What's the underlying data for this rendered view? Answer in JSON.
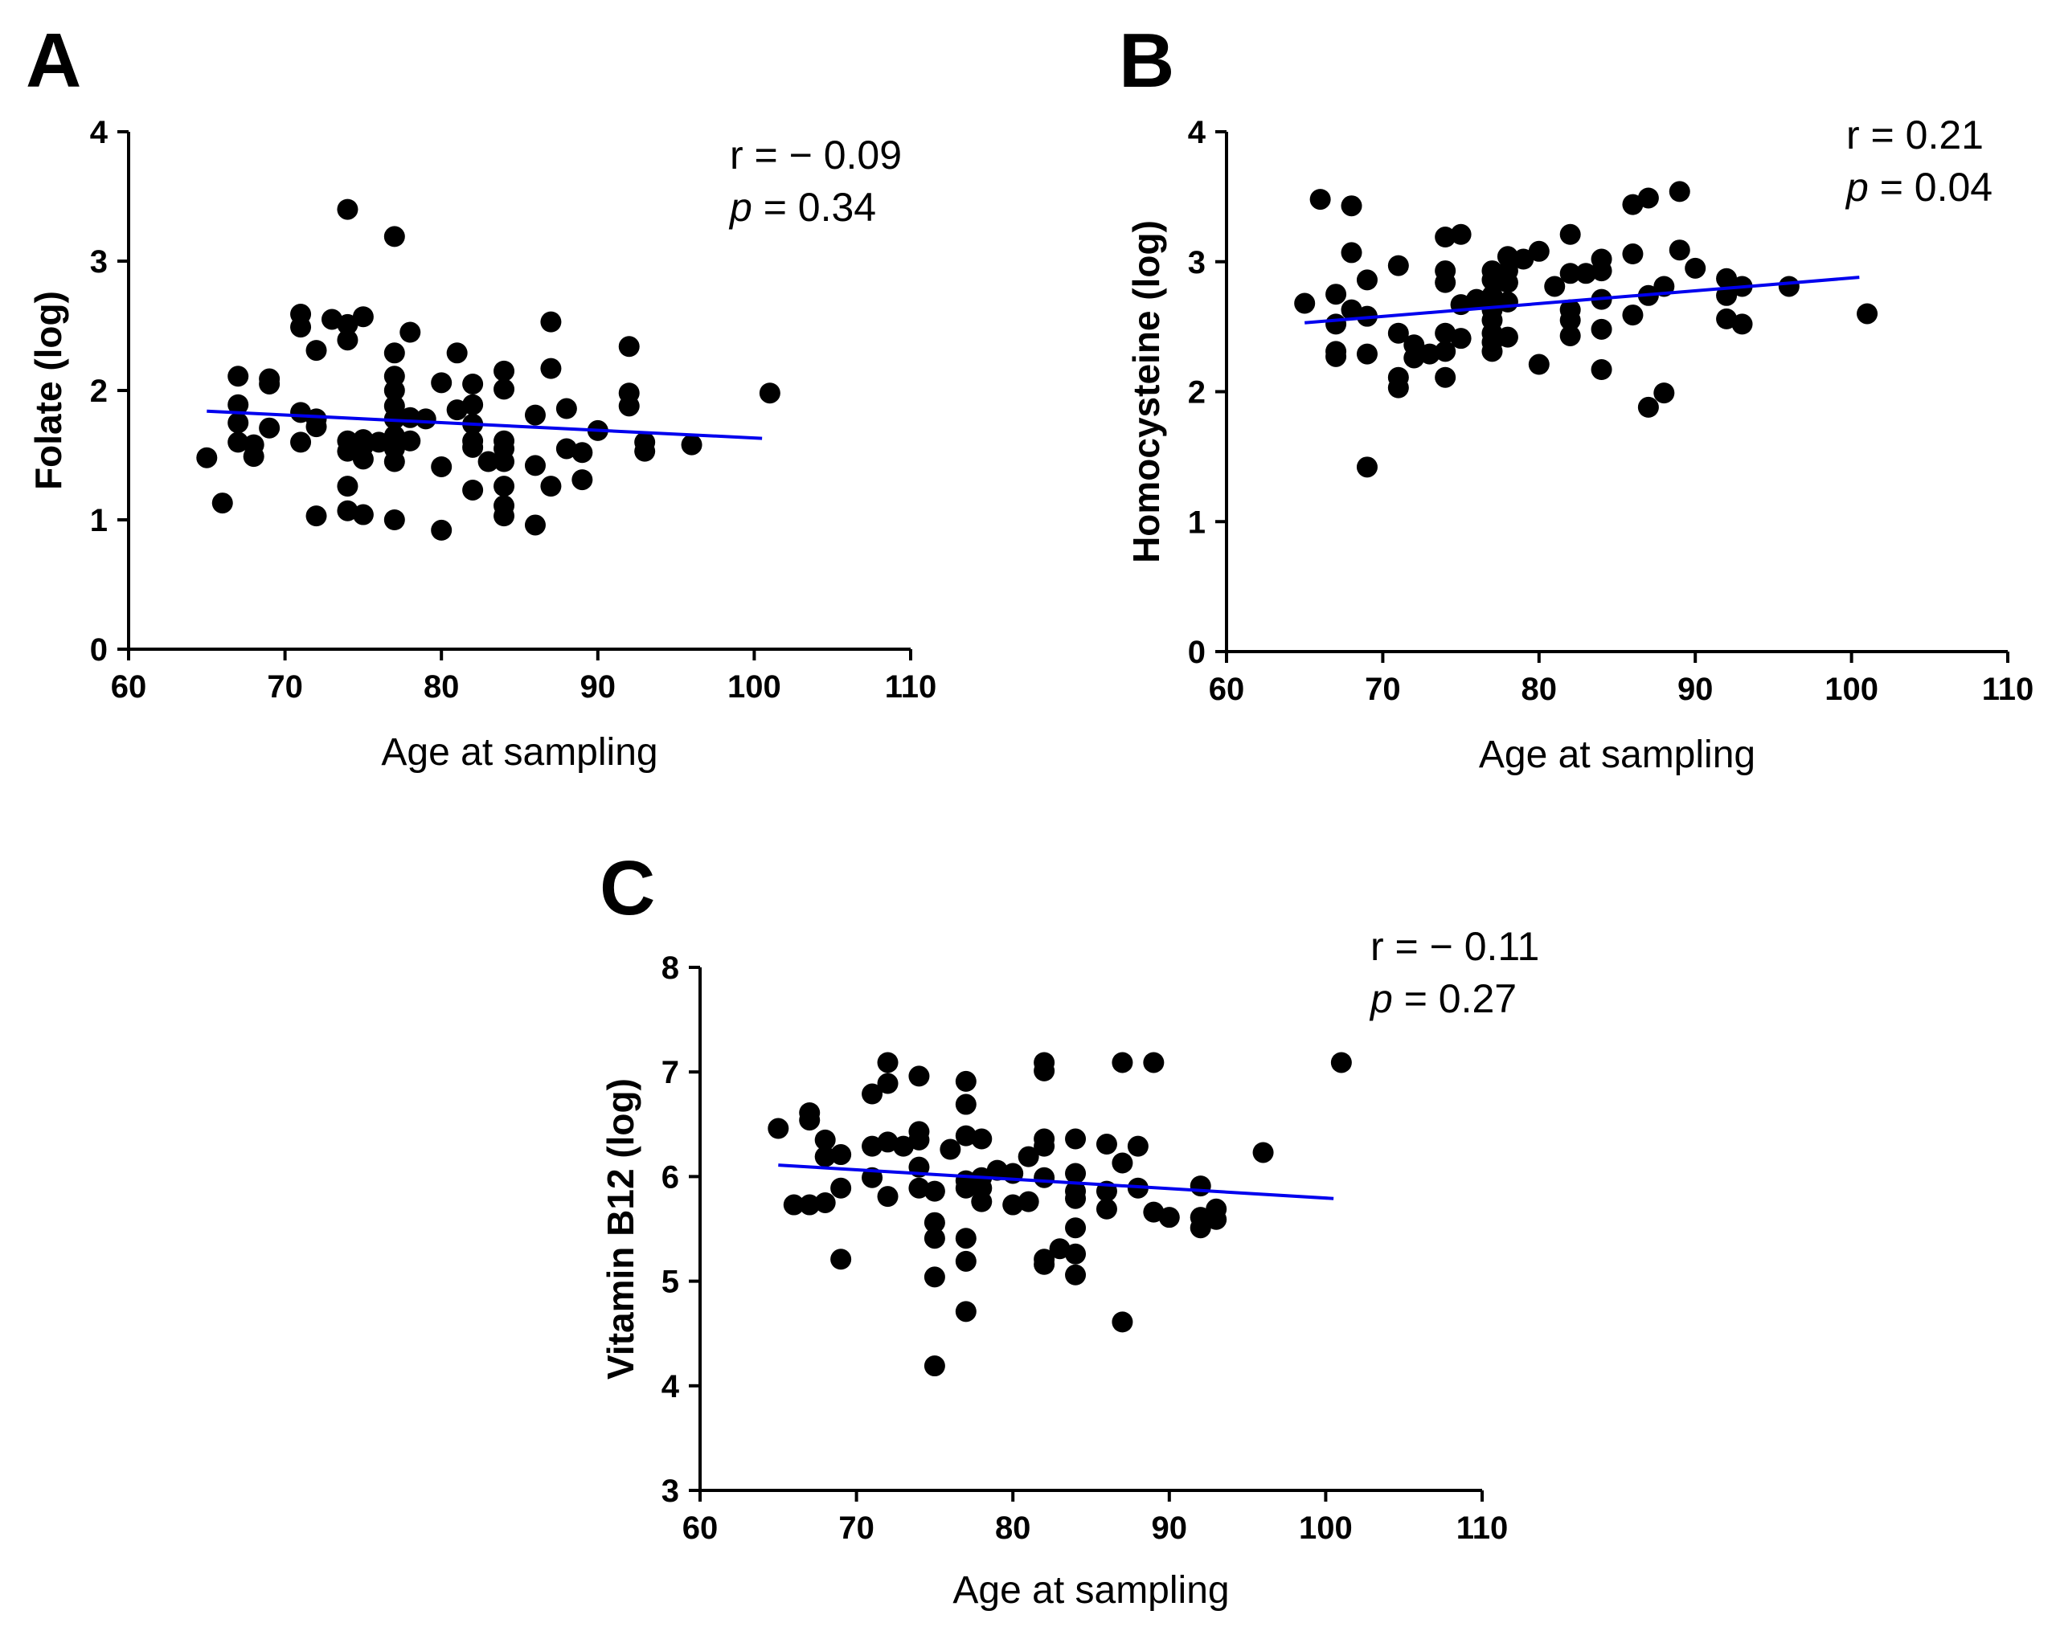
{
  "chart_data": [
    {
      "panel": "A",
      "type": "scatter",
      "xlabel": "Age at sampling",
      "ylabel": "Folate (log)",
      "xlim": [
        60,
        110
      ],
      "ylim": [
        0,
        4
      ],
      "xticks": [
        60,
        70,
        80,
        90,
        100,
        110
      ],
      "yticks": [
        0,
        1,
        2,
        3,
        4
      ],
      "r_text": "r = − 0.09",
      "p_symbol": "p",
      "p_text": " = 0.34",
      "fit_line": {
        "x": [
          65,
          100.5
        ],
        "y": [
          1.84,
          1.63
        ],
        "color": "#0000ee"
      },
      "points": [
        [
          65,
          1.48
        ],
        [
          66,
          1.13
        ],
        [
          67,
          2.11
        ],
        [
          67,
          1.89
        ],
        [
          67,
          1.75
        ],
        [
          67,
          1.6
        ],
        [
          68,
          1.58
        ],
        [
          68,
          1.49
        ],
        [
          69,
          2.09
        ],
        [
          69,
          2.05
        ],
        [
          69,
          1.71
        ],
        [
          71,
          2.59
        ],
        [
          71,
          2.49
        ],
        [
          71,
          1.83
        ],
        [
          71,
          1.6
        ],
        [
          72,
          2.31
        ],
        [
          72,
          1.78
        ],
        [
          72,
          1.72
        ],
        [
          72,
          1.03
        ],
        [
          73,
          2.55
        ],
        [
          74,
          3.4
        ],
        [
          74,
          2.51
        ],
        [
          74,
          2.39
        ],
        [
          74,
          1.61
        ],
        [
          74,
          1.53
        ],
        [
          74,
          1.26
        ],
        [
          74,
          1.07
        ],
        [
          75,
          2.57
        ],
        [
          75,
          1.62
        ],
        [
          75,
          1.57
        ],
        [
          75,
          1.47
        ],
        [
          75,
          1.04
        ],
        [
          76,
          1.6
        ],
        [
          77,
          3.19
        ],
        [
          77,
          2.29
        ],
        [
          77,
          2.11
        ],
        [
          77,
          2.0
        ],
        [
          77,
          1.88
        ],
        [
          77,
          1.78
        ],
        [
          77,
          1.65
        ],
        [
          77,
          1.55
        ],
        [
          77,
          1.45
        ],
        [
          77,
          1.0
        ],
        [
          78,
          2.45
        ],
        [
          78,
          1.79
        ],
        [
          78,
          1.61
        ],
        [
          79,
          1.78
        ],
        [
          80,
          2.06
        ],
        [
          80,
          1.41
        ],
        [
          80,
          0.92
        ],
        [
          81,
          2.29
        ],
        [
          81,
          1.85
        ],
        [
          82,
          2.05
        ],
        [
          82,
          1.89
        ],
        [
          82,
          1.74
        ],
        [
          82,
          1.61
        ],
        [
          82,
          1.56
        ],
        [
          82,
          1.23
        ],
        [
          83,
          1.45
        ],
        [
          84,
          2.15
        ],
        [
          84,
          2.01
        ],
        [
          84,
          1.61
        ],
        [
          84,
          1.55
        ],
        [
          84,
          1.45
        ],
        [
          84,
          1.26
        ],
        [
          84,
          1.11
        ],
        [
          84,
          1.03
        ],
        [
          86,
          1.81
        ],
        [
          86,
          1.42
        ],
        [
          86,
          0.96
        ],
        [
          87,
          2.53
        ],
        [
          87,
          2.17
        ],
        [
          87,
          1.26
        ],
        [
          88,
          1.86
        ],
        [
          88,
          1.55
        ],
        [
          89,
          1.52
        ],
        [
          89,
          1.31
        ],
        [
          90,
          1.69
        ],
        [
          92,
          2.34
        ],
        [
          92,
          1.98
        ],
        [
          92,
          1.88
        ],
        [
          93,
          1.6
        ],
        [
          93,
          1.53
        ],
        [
          96,
          1.58
        ],
        [
          101,
          1.98
        ]
      ]
    },
    {
      "panel": "B",
      "type": "scatter",
      "xlabel": "Age at sampling",
      "ylabel": "Homocysteine (log)",
      "xlim": [
        60,
        110
      ],
      "ylim": [
        0,
        4
      ],
      "xticks": [
        60,
        70,
        80,
        90,
        100,
        110
      ],
      "yticks": [
        0,
        1,
        2,
        3,
        4
      ],
      "r_text": "r = 0.21",
      "p_symbol": "p",
      "p_text": " = 0.04",
      "fit_line": {
        "x": [
          65,
          100.5
        ],
        "y": [
          2.53,
          2.88
        ],
        "color": "#0000ee"
      },
      "points": [
        [
          65,
          2.68
        ],
        [
          66,
          3.48
        ],
        [
          67,
          2.75
        ],
        [
          67,
          2.52
        ],
        [
          67,
          2.31
        ],
        [
          67,
          2.27
        ],
        [
          68,
          3.43
        ],
        [
          68,
          3.07
        ],
        [
          68,
          2.63
        ],
        [
          69,
          2.86
        ],
        [
          69,
          2.58
        ],
        [
          69,
          2.29
        ],
        [
          69,
          1.42
        ],
        [
          71,
          2.97
        ],
        [
          71,
          2.45
        ],
        [
          71,
          2.11
        ],
        [
          71,
          2.03
        ],
        [
          72,
          2.36
        ],
        [
          72,
          2.26
        ],
        [
          73,
          2.29
        ],
        [
          74,
          3.19
        ],
        [
          74,
          2.93
        ],
        [
          74,
          2.84
        ],
        [
          74,
          2.45
        ],
        [
          74,
          2.31
        ],
        [
          74,
          2.11
        ],
        [
          75,
          3.21
        ],
        [
          75,
          2.67
        ],
        [
          75,
          2.41
        ],
        [
          76,
          2.71
        ],
        [
          77,
          2.93
        ],
        [
          77,
          2.86
        ],
        [
          77,
          2.74
        ],
        [
          77,
          2.63
        ],
        [
          77,
          2.55
        ],
        [
          77,
          2.45
        ],
        [
          77,
          2.38
        ],
        [
          77,
          2.31
        ],
        [
          78,
          3.04
        ],
        [
          78,
          2.93
        ],
        [
          78,
          2.84
        ],
        [
          78,
          2.69
        ],
        [
          78,
          2.42
        ],
        [
          79,
          3.02
        ],
        [
          80,
          3.08
        ],
        [
          80,
          2.21
        ],
        [
          81,
          2.81
        ],
        [
          82,
          3.21
        ],
        [
          82,
          2.91
        ],
        [
          82,
          2.63
        ],
        [
          82,
          2.55
        ],
        [
          82,
          2.43
        ],
        [
          83,
          2.91
        ],
        [
          84,
          3.02
        ],
        [
          84,
          2.93
        ],
        [
          84,
          2.71
        ],
        [
          84,
          2.48
        ],
        [
          84,
          2.17
        ],
        [
          86,
          3.44
        ],
        [
          86,
          3.06
        ],
        [
          86,
          2.59
        ],
        [
          87,
          3.49
        ],
        [
          87,
          2.74
        ],
        [
          87,
          1.88
        ],
        [
          88,
          2.81
        ],
        [
          88,
          1.99
        ],
        [
          89,
          3.54
        ],
        [
          89,
          3.09
        ],
        [
          90,
          2.95
        ],
        [
          92,
          2.87
        ],
        [
          92,
          2.74
        ],
        [
          92,
          2.56
        ],
        [
          93,
          2.81
        ],
        [
          93,
          2.52
        ],
        [
          96,
          2.81
        ],
        [
          101,
          2.6
        ]
      ]
    },
    {
      "panel": "C",
      "type": "scatter",
      "xlabel": "Age at sampling",
      "ylabel": "Vitamin B12 (log)",
      "xlim": [
        60,
        110
      ],
      "ylim": [
        3,
        8
      ],
      "xticks": [
        60,
        70,
        80,
        90,
        100,
        110
      ],
      "yticks": [
        3,
        4,
        5,
        6,
        7,
        8
      ],
      "r_text": "r = − 0.11",
      "p_symbol": "p",
      "p_text": " = 0.27",
      "fit_line": {
        "x": [
          65,
          100.5
        ],
        "y": [
          6.11,
          5.79
        ],
        "color": "#0000ee"
      },
      "points": [
        [
          65,
          6.46
        ],
        [
          66,
          5.73
        ],
        [
          67,
          6.61
        ],
        [
          67,
          6.54
        ],
        [
          67,
          5.73
        ],
        [
          68,
          6.35
        ],
        [
          68,
          6.19
        ],
        [
          68,
          5.75
        ],
        [
          69,
          6.21
        ],
        [
          69,
          5.89
        ],
        [
          69,
          5.21
        ],
        [
          71,
          6.79
        ],
        [
          71,
          6.29
        ],
        [
          71,
          5.99
        ],
        [
          72,
          7.09
        ],
        [
          72,
          6.89
        ],
        [
          72,
          6.33
        ],
        [
          72,
          5.81
        ],
        [
          73,
          6.29
        ],
        [
          74,
          6.96
        ],
        [
          74,
          6.43
        ],
        [
          74,
          6.35
        ],
        [
          74,
          6.09
        ],
        [
          74,
          5.89
        ],
        [
          75,
          5.86
        ],
        [
          75,
          5.56
        ],
        [
          75,
          5.41
        ],
        [
          75,
          5.04
        ],
        [
          75,
          4.19
        ],
        [
          76,
          6.26
        ],
        [
          77,
          6.91
        ],
        [
          77,
          6.69
        ],
        [
          77,
          6.39
        ],
        [
          77,
          5.96
        ],
        [
          77,
          5.89
        ],
        [
          77,
          5.41
        ],
        [
          77,
          5.19
        ],
        [
          77,
          4.71
        ],
        [
          78,
          6.36
        ],
        [
          78,
          5.99
        ],
        [
          78,
          5.89
        ],
        [
          78,
          5.76
        ],
        [
          79,
          6.06
        ],
        [
          80,
          6.03
        ],
        [
          80,
          5.73
        ],
        [
          81,
          6.19
        ],
        [
          81,
          5.76
        ],
        [
          82,
          7.09
        ],
        [
          82,
          7.01
        ],
        [
          82,
          6.36
        ],
        [
          82,
          6.29
        ],
        [
          82,
          5.99
        ],
        [
          82,
          5.21
        ],
        [
          82,
          5.16
        ],
        [
          83,
          5.31
        ],
        [
          84,
          6.36
        ],
        [
          84,
          6.03
        ],
        [
          84,
          5.86
        ],
        [
          84,
          5.79
        ],
        [
          84,
          5.51
        ],
        [
          84,
          5.26
        ],
        [
          84,
          5.06
        ],
        [
          86,
          6.31
        ],
        [
          86,
          5.86
        ],
        [
          86,
          5.69
        ],
        [
          87,
          7.09
        ],
        [
          87,
          6.13
        ],
        [
          87,
          4.61
        ],
        [
          88,
          6.29
        ],
        [
          88,
          5.89
        ],
        [
          89,
          7.09
        ],
        [
          89,
          5.66
        ],
        [
          90,
          5.61
        ],
        [
          92,
          5.91
        ],
        [
          92,
          5.61
        ],
        [
          92,
          5.51
        ],
        [
          93,
          5.69
        ],
        [
          93,
          5.59
        ],
        [
          96,
          6.23
        ],
        [
          101,
          7.09
        ]
      ]
    }
  ]
}
